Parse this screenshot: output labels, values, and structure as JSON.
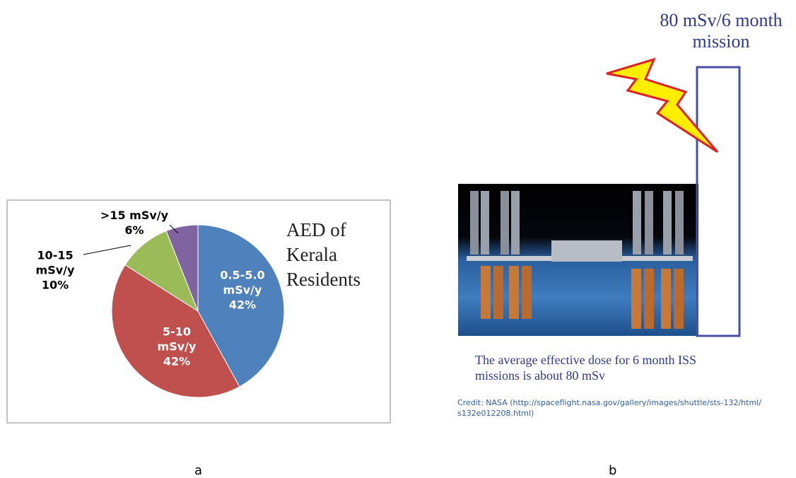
{
  "chart_data": {
    "type": "pie",
    "title": "AED of Kerala Residents",
    "categories": [
      "0.5-5.0 mSv/y",
      "5-10 mSv/y",
      "10-15 mSv/y",
      ">15 mSv/y"
    ],
    "values": [
      42,
      42,
      10,
      6
    ],
    "value_labels": [
      "42%",
      "42%",
      "10%",
      "6%"
    ],
    "colors": [
      "#4f81bd",
      "#c0504d",
      "#9bbb59",
      "#8064a2"
    ]
  },
  "panel_b": {
    "label": "80 mSv/6 month mission",
    "caption": "The average effective dose for 6 month ISS missions is about 80 mSv",
    "credit": "Credit: NASA (http://spaceflight.nasa.gov/gallery/images/shuttle/sts-132/html/s132e012208.html)"
  },
  "panel_labels": [
    "a",
    "b"
  ]
}
